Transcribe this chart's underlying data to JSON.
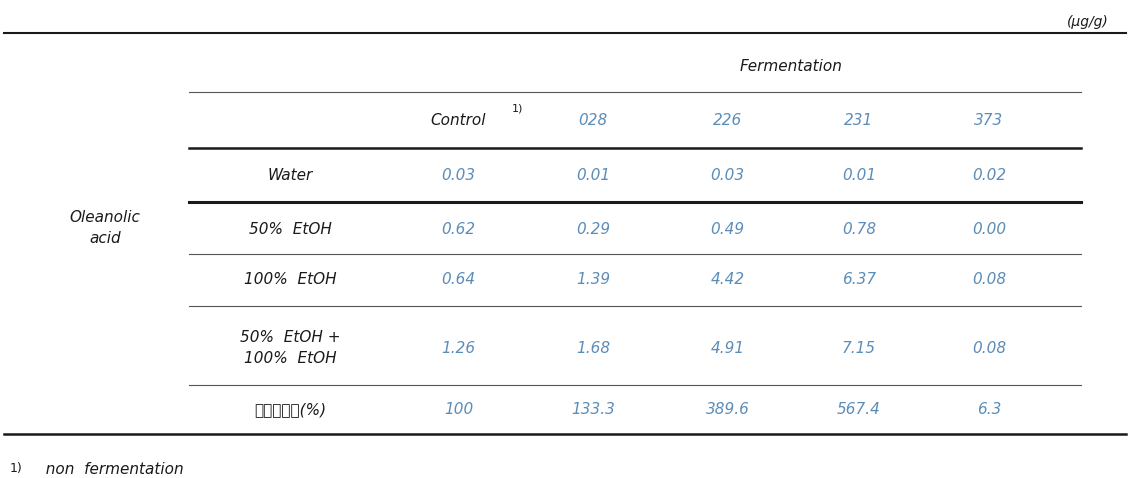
{
  "unit_label": "(μg/g)",
  "fermentation_label": "Fermentation",
  "control_label": "Control",
  "control_superscript": "1)",
  "col_keys": [
    "028",
    "226",
    "231",
    "373"
  ],
  "text_color": "#5b8db8",
  "black_color": "#1a1a1a",
  "font_size": 11,
  "rows": [
    {
      "label": "Water",
      "values": [
        "0.03",
        "0.01",
        "0.03",
        "0.01",
        "0.02"
      ]
    },
    {
      "label": "50%  EtOH",
      "values": [
        "0.62",
        "0.29",
        "0.49",
        "0.78",
        "0.00"
      ]
    },
    {
      "label": "100%  EtOH",
      "values": [
        "0.64",
        "1.39",
        "4.42",
        "6.37",
        "0.08"
      ]
    },
    {
      "label": "50%  EtOH +\n100%  EtOH",
      "values": [
        "1.26",
        "1.68",
        "4.91",
        "7.15",
        "0.08"
      ]
    },
    {
      "label": "합산증가율(%)",
      "values": [
        "100",
        "133.3",
        "389.6",
        "567.4",
        "6.3"
      ]
    }
  ],
  "group_label_line1": "Oleanolic",
  "group_label_line2": "acid",
  "footnote_super": "1)",
  "footnote_text": "  non  fermentation"
}
